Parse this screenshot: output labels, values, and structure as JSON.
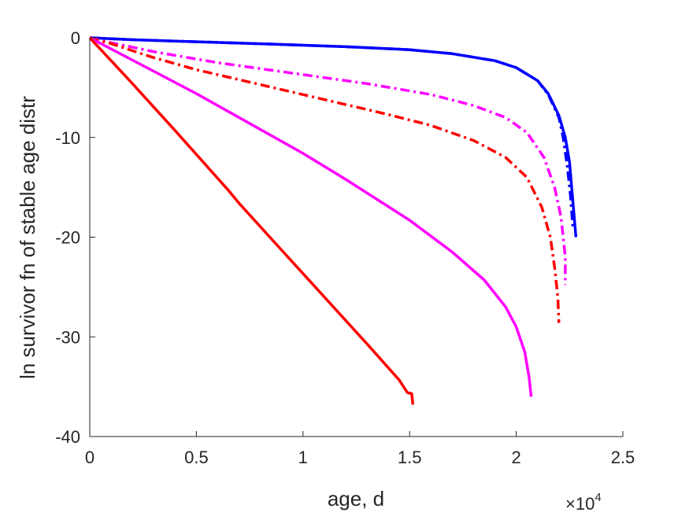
{
  "chart_data": {
    "type": "line",
    "title": "",
    "xlabel": "age, d",
    "ylabel": "ln survivor fn of stable age distr",
    "x_exponent_label": {
      "base": "×10",
      "exponent": "4"
    },
    "xlim": [
      0,
      25000
    ],
    "ylim": [
      -40,
      0
    ],
    "x_ticks": [
      0,
      5000,
      10000,
      15000,
      20000,
      25000
    ],
    "x_tick_labels": [
      "0",
      "0.5",
      "1",
      "1.5",
      "2",
      "2.5"
    ],
    "y_ticks": [
      0,
      -10,
      -20,
      -30,
      -40
    ],
    "y_tick_labels": [
      "0",
      "-10",
      "-20",
      "-30",
      "-40"
    ],
    "grid": false,
    "series": [
      {
        "color": "#0000ff",
        "style": "solid",
        "points": [
          [
            0,
            0
          ],
          [
            2000,
            -0.2
          ],
          [
            5000,
            -0.4
          ],
          [
            8000,
            -0.6
          ],
          [
            12000,
            -0.9
          ],
          [
            15000,
            -1.2
          ],
          [
            17000,
            -1.6
          ],
          [
            19000,
            -2.3
          ],
          [
            20000,
            -3.0
          ],
          [
            21000,
            -4.3
          ],
          [
            21500,
            -5.6
          ],
          [
            22000,
            -7.8
          ],
          [
            22300,
            -10.0
          ],
          [
            22500,
            -12.5
          ],
          [
            22600,
            -15.0
          ],
          [
            22700,
            -17.5
          ],
          [
            22800,
            -20.0
          ]
        ]
      },
      {
        "color": "#0000ff",
        "style": "dashdot",
        "points": [
          [
            0,
            0
          ],
          [
            2000,
            -0.2
          ],
          [
            5000,
            -0.4
          ],
          [
            8000,
            -0.6
          ],
          [
            12000,
            -0.9
          ],
          [
            15000,
            -1.2
          ],
          [
            17000,
            -1.6
          ],
          [
            19000,
            -2.3
          ],
          [
            20000,
            -3.0
          ],
          [
            21000,
            -4.3
          ],
          [
            21500,
            -5.7
          ],
          [
            22000,
            -8.0
          ],
          [
            22200,
            -10.0
          ],
          [
            22400,
            -13.0
          ],
          [
            22550,
            -16.0
          ],
          [
            22650,
            -18.9
          ]
        ]
      },
      {
        "color": "#ff00ff",
        "style": "dashdot",
        "points": [
          [
            0,
            0
          ],
          [
            1000,
            -0.5
          ],
          [
            3000,
            -1.4
          ],
          [
            6000,
            -2.5
          ],
          [
            10000,
            -3.7
          ],
          [
            13000,
            -4.6
          ],
          [
            16000,
            -5.7
          ],
          [
            18000,
            -6.8
          ],
          [
            19500,
            -8.0
          ],
          [
            20500,
            -9.5
          ],
          [
            21300,
            -12.0
          ],
          [
            21800,
            -15.0
          ],
          [
            22100,
            -18.0
          ],
          [
            22200,
            -20.0
          ],
          [
            22300,
            -22.0
          ],
          [
            22300,
            -24.8
          ]
        ]
      },
      {
        "color": "#ff0000",
        "style": "dashdot",
        "points": [
          [
            0,
            0
          ],
          [
            1000,
            -0.6
          ],
          [
            3000,
            -2.0
          ],
          [
            5000,
            -3.2
          ],
          [
            8000,
            -4.7
          ],
          [
            11000,
            -6.2
          ],
          [
            14000,
            -7.7
          ],
          [
            16000,
            -8.8
          ],
          [
            18000,
            -10.3
          ],
          [
            19500,
            -12.0
          ],
          [
            20500,
            -14.0
          ],
          [
            21200,
            -17.0
          ],
          [
            21600,
            -20.0
          ],
          [
            21800,
            -23.0
          ],
          [
            21950,
            -26.0
          ],
          [
            22000,
            -28.6
          ]
        ]
      },
      {
        "color": "#ff00ff",
        "style": "solid",
        "points": [
          [
            0,
            0
          ],
          [
            5000,
            -5.6
          ],
          [
            10000,
            -11.6
          ],
          [
            12000,
            -14.2
          ],
          [
            15000,
            -18.3
          ],
          [
            17000,
            -21.5
          ],
          [
            18500,
            -24.3
          ],
          [
            19500,
            -27.0
          ],
          [
            20000,
            -29.0
          ],
          [
            20400,
            -31.5
          ],
          [
            20600,
            -34.0
          ],
          [
            20700,
            -36.0
          ]
        ]
      },
      {
        "color": "#ff0000",
        "style": "solid",
        "points": [
          [
            0,
            0
          ],
          [
            2000,
            -4.6
          ],
          [
            4000,
            -9.3
          ],
          [
            6500,
            -15.3
          ],
          [
            7000,
            -16.6
          ],
          [
            9000,
            -21.3
          ],
          [
            11000,
            -26.0
          ],
          [
            13000,
            -30.7
          ],
          [
            14500,
            -34.3
          ],
          [
            14900,
            -35.6
          ],
          [
            15100,
            -35.7
          ],
          [
            15150,
            -36.8
          ]
        ]
      }
    ]
  }
}
